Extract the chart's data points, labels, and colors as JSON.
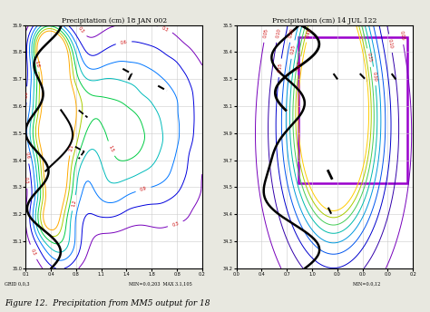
{
  "title_left": "Precipitation (cm) 18 JAN 002",
  "title_right": "Precipitation (cm) 14 JUL 122",
  "caption_text": "Figure 12.  Precipitation from MM5 output for 18",
  "bottom_left": "GRID 0,0,3",
  "bottom_mid": "MIN=0.0,203  MAX 3.1,105",
  "bottom_right": "MIN=0.0,12",
  "figure_bg": "#e8e8e0",
  "panel_bg": "#ffffff",
  "contour_colors_left": [
    "#cc00cc",
    "#8800cc",
    "#0000ee",
    "#0055ff",
    "#0099ff",
    "#00bbcc",
    "#00cc88",
    "#66cc00",
    "#aacc00",
    "#cccc00",
    "#cc8800",
    "#cc4400",
    "#cc0000"
  ],
  "contour_colors_right": [
    "#8800cc",
    "#4400aa",
    "#0000cc",
    "#0044ff",
    "#0088ff",
    "#00aacc",
    "#00cc99",
    "#66cc33",
    "#aacc00",
    "#cccc00",
    "#cc9900",
    "#cc5500",
    "#cc0000"
  ],
  "coast_color": "#000000",
  "label_color": "#cc0000",
  "grid_color": "#cccccc",
  "purple_box_color": "#9900cc",
  "left_ytick_labels": [
    "35.0",
    "35.1",
    "35.2",
    "35.3",
    "35.4",
    "35.5",
    "35.6",
    "35.7",
    "35.8",
    "35.9"
  ],
  "right_ytick_labels": [
    "34.2",
    "34.3",
    "34.4",
    "34.5",
    "34.7",
    "34.9",
    "35.1",
    "35.3",
    "35.4",
    "35.5"
  ],
  "left_xtick_labels": [
    "0.1",
    "0.4",
    "0.8",
    "1.1",
    "1.4",
    "1.8",
    "0.8",
    "0.2"
  ],
  "right_xtick_labels": [
    "0.0",
    "0.4",
    "0.7",
    "1.0",
    "0.0",
    "0.0",
    "0.0",
    "0.2"
  ]
}
